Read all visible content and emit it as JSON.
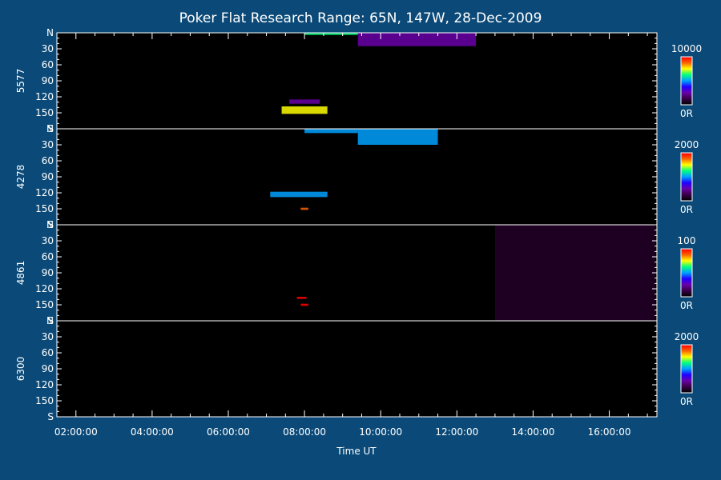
{
  "chart_data": {
    "type": "heatmap",
    "title": "Poker Flat Research Range: 65N, 147W, 28-Dec-2009",
    "xlabel": "Time UT",
    "x_ticks": [
      "02:00:00",
      "04:00:00",
      "06:00:00",
      "08:00:00",
      "10:00:00",
      "12:00:00",
      "14:00:00",
      "16:00:00"
    ],
    "x_range_hours": [
      1.5,
      17.25
    ],
    "y_ticks": [
      "N",
      "30",
      "60",
      "90",
      "120",
      "150",
      "S"
    ],
    "y_range": [
      0,
      180
    ],
    "colorscale": [
      "#000000",
      "#3a0044",
      "#6a00a8",
      "#2000ff",
      "#00a0ff",
      "#00ff80",
      "#ffff00",
      "#ff6000",
      "#ff0000"
    ],
    "panels": [
      {
        "ylabel": "5577",
        "cbar_max": "10000",
        "cbar_min": "0R",
        "features": [
          {
            "t0": 8.0,
            "t1": 9.4,
            "y0": 0,
            "y1": 4,
            "level": 0.6
          },
          {
            "t0": 9.4,
            "t1": 12.5,
            "y0": 0,
            "y1": 25,
            "level": 0.25
          },
          {
            "t0": 7.4,
            "t1": 8.6,
            "y0": 138,
            "y1": 152,
            "level": 0.75
          },
          {
            "t0": 7.6,
            "t1": 8.4,
            "y0": 125,
            "y1": 133,
            "level": 0.3
          }
        ]
      },
      {
        "ylabel": "4278",
        "cbar_max": "2000",
        "cbar_min": "0R",
        "features": [
          {
            "t0": 8.0,
            "t1": 9.4,
            "y0": 0,
            "y1": 8,
            "level": 0.55
          },
          {
            "t0": 9.4,
            "t1": 11.5,
            "y0": 0,
            "y1": 30,
            "level": 0.55
          },
          {
            "t0": 7.1,
            "t1": 8.6,
            "y0": 118,
            "y1": 128,
            "level": 0.5
          },
          {
            "t0": 7.9,
            "t1": 8.1,
            "y0": 148,
            "y1": 152,
            "level": 0.9
          }
        ]
      },
      {
        "ylabel": "4861",
        "cbar_max": "100",
        "cbar_min": "0R",
        "features": [
          {
            "t0": 7.8,
            "t1": 8.05,
            "y0": 135,
            "y1": 139,
            "level": 0.95
          },
          {
            "t0": 7.9,
            "t1": 8.1,
            "y0": 148,
            "y1": 152,
            "level": 0.95
          },
          {
            "t0": 13.0,
            "t1": 17.2,
            "y0": 0,
            "y1": 180,
            "level": 0.12
          }
        ]
      },
      {
        "ylabel": "6300",
        "cbar_max": "2000",
        "cbar_min": "0R",
        "features": []
      }
    ]
  }
}
